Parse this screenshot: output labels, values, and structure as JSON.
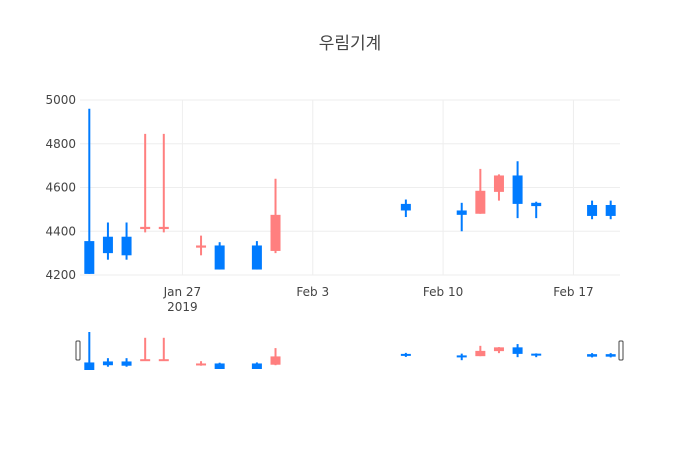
{
  "chart_data": {
    "type": "candlestick",
    "title": "우림기계",
    "xlabel": "",
    "ylabel": "",
    "ylim": [
      4200,
      5000
    ],
    "y_ticks": [
      4200,
      4400,
      4600,
      4800,
      5000
    ],
    "x_ticks": [
      {
        "date": "2019-01-27",
        "label": "Jan 27",
        "sublabel": "2019"
      },
      {
        "date": "2019-02-03",
        "label": "Feb 3",
        "sublabel": ""
      },
      {
        "date": "2019-02-10",
        "label": "Feb 10",
        "sublabel": ""
      },
      {
        "date": "2019-02-17",
        "label": "Feb 17",
        "sublabel": ""
      }
    ],
    "x_range": [
      "2019-01-21T12:00",
      "2019-02-19T12:00"
    ],
    "grid": true,
    "legend": "none",
    "colors": {
      "increasing": "#ff7f7f",
      "decreasing": "#007bff",
      "grid": "#eeeeee",
      "text": "#444444"
    },
    "rangeslider": true,
    "candles": [
      {
        "date": "2019-01-22",
        "open": 4355,
        "high": 4960,
        "low": 4205,
        "close": 4205
      },
      {
        "date": "2019-01-23",
        "open": 4375,
        "high": 4440,
        "low": 4270,
        "close": 4300
      },
      {
        "date": "2019-01-24",
        "open": 4375,
        "high": 4440,
        "low": 4270,
        "close": 4290
      },
      {
        "date": "2019-01-25",
        "open": 4410,
        "high": 4845,
        "low": 4395,
        "close": 4420
      },
      {
        "date": "2019-01-26",
        "open": 4410,
        "high": 4845,
        "low": 4395,
        "close": 4420
      },
      {
        "date": "2019-01-28",
        "open": 4325,
        "high": 4380,
        "low": 4290,
        "close": 4335
      },
      {
        "date": "2019-01-29",
        "open": 4335,
        "high": 4350,
        "low": 4225,
        "close": 4225
      },
      {
        "date": "2019-01-31",
        "open": 4335,
        "high": 4355,
        "low": 4225,
        "close": 4225
      },
      {
        "date": "2019-02-01",
        "open": 4310,
        "high": 4640,
        "low": 4300,
        "close": 4475
      },
      {
        "date": "2019-02-08",
        "open": 4525,
        "high": 4545,
        "low": 4465,
        "close": 4495
      },
      {
        "date": "2019-02-11",
        "open": 4495,
        "high": 4530,
        "low": 4400,
        "close": 4475
      },
      {
        "date": "2019-02-12",
        "open": 4480,
        "high": 4685,
        "low": 4480,
        "close": 4585
      },
      {
        "date": "2019-02-13",
        "open": 4580,
        "high": 4660,
        "low": 4540,
        "close": 4655
      },
      {
        "date": "2019-02-14",
        "open": 4655,
        "high": 4720,
        "low": 4460,
        "close": 4525
      },
      {
        "date": "2019-02-15",
        "open": 4530,
        "high": 4535,
        "low": 4460,
        "close": 4515
      },
      {
        "date": "2019-02-18",
        "open": 4520,
        "high": 4540,
        "low": 4455,
        "close": 4470
      },
      {
        "date": "2019-02-19",
        "open": 4520,
        "high": 4540,
        "low": 4455,
        "close": 4470
      }
    ]
  }
}
